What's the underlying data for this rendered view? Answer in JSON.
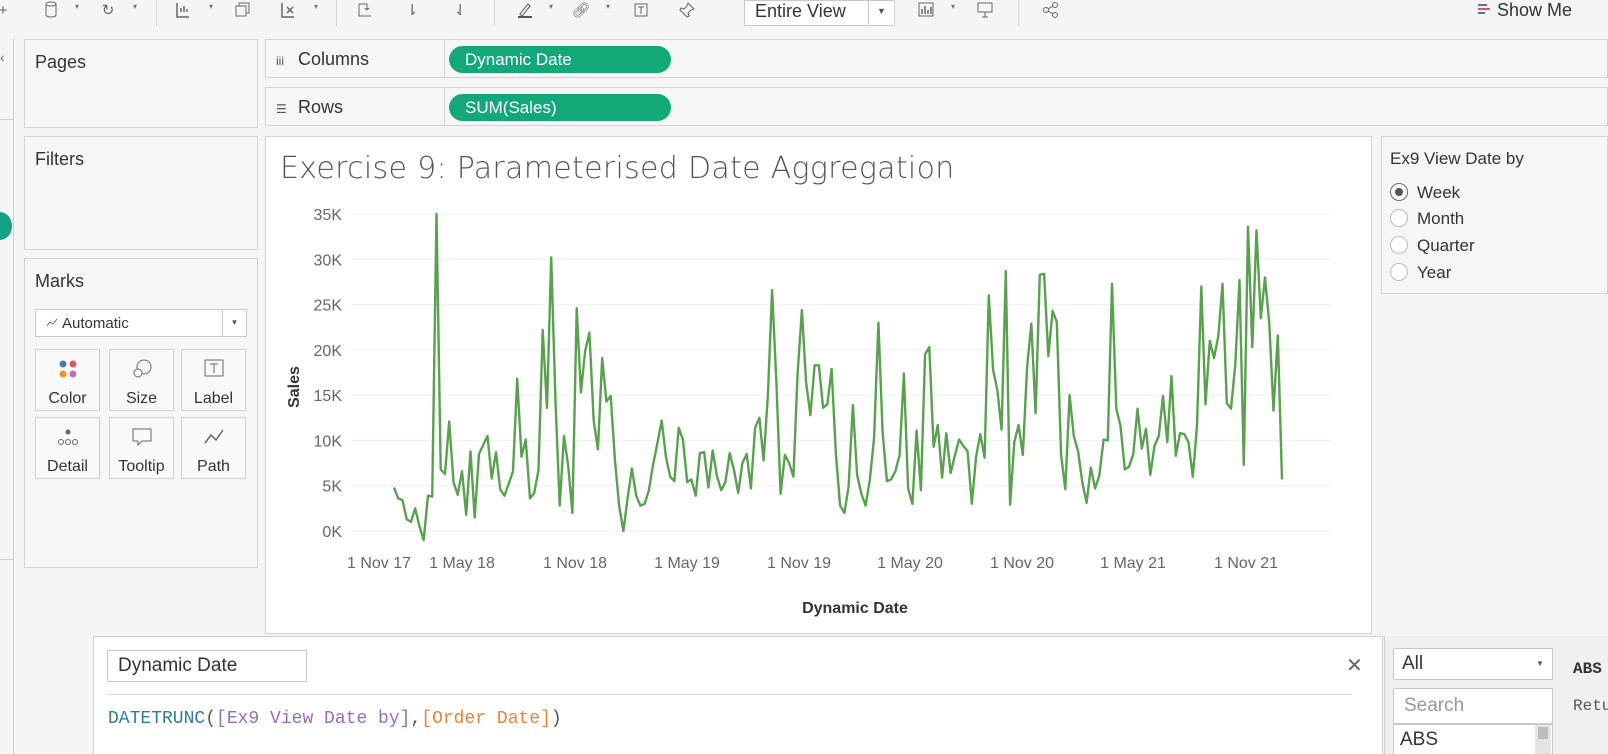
{
  "toolbar": {
    "fit_label": "Entire View",
    "show_me_label": "Show Me",
    "icons": [
      "add-datasource-icon",
      "refresh-icon",
      "new-sheet-icon",
      "duplicate-sheet-icon",
      "clear-sheet-icon",
      "swap-icon",
      "sort-asc-icon",
      "sort-desc-icon",
      "highlight-icon",
      "group-icon",
      "label-icon",
      "pin-icon",
      "bar-chart-icon",
      "presentation-icon",
      "share-icon"
    ]
  },
  "panels": {
    "pages_title": "Pages",
    "filters_title": "Filters",
    "marks_title": "Marks",
    "marks_type": "Automatic",
    "mark_cards": [
      {
        "label": "Color",
        "icon": "color-icon"
      },
      {
        "label": "Size",
        "icon": "size-icon"
      },
      {
        "label": "Label",
        "icon": "label-icon"
      },
      {
        "label": "Detail",
        "icon": "detail-icon"
      },
      {
        "label": "Tooltip",
        "icon": "tooltip-icon"
      },
      {
        "label": "Path",
        "icon": "path-icon"
      }
    ]
  },
  "shelves": {
    "columns_label": "Columns",
    "columns_pill": "Dynamic Date",
    "rows_label": "Rows",
    "rows_pill": "SUM(Sales)"
  },
  "view": {
    "title": "Exercise 9: Parameterised Date Aggregation"
  },
  "parameter": {
    "title": "Ex9  View Date by",
    "options": [
      "Week",
      "Month",
      "Quarter",
      "Year"
    ],
    "selected": "Week"
  },
  "calc_editor": {
    "name": "Dynamic Date",
    "formula_fn": "DATETRUNC",
    "formula_open": "(",
    "formula_param": "[Ex9  View Date by]",
    "formula_comma": ",",
    "formula_field": "[Order Date]",
    "formula_close": ")"
  },
  "function_list": {
    "category": "All",
    "search_placeholder": "Search",
    "first_item": "ABS",
    "desc_title": "ABS",
    "desc_text": "Retu absol"
  },
  "chart_data": {
    "type": "line",
    "title": "Exercise 9: Parameterised Date Aggregation",
    "xlabel": "Dynamic Date",
    "ylabel": "Sales",
    "x_tick_labels": [
      "1 Nov 17",
      "1 May 18",
      "1 Nov 18",
      "1 May 19",
      "1 Nov 19",
      "1 May 20",
      "1 Nov 20",
      "1 May 21",
      "1 Nov 21"
    ],
    "y_tick_labels": [
      "0K",
      "5K",
      "10K",
      "15K",
      "20K",
      "25K",
      "30K",
      "35K"
    ],
    "ylim": [
      -1000,
      35000
    ],
    "color": "#59a14f",
    "series": [
      {
        "values": [
          4800,
          3600,
          3400,
          1300,
          1000,
          2500,
          500,
          -1000,
          3900,
          3800,
          35000,
          6800,
          6300,
          12100,
          5400,
          4000,
          6600,
          1800,
          8800,
          1500,
          8500,
          9500,
          10500,
          5800,
          8700,
          4600,
          3900,
          5200,
          6600,
          16800,
          8200,
          10100,
          3600,
          4200,
          6700,
          22200,
          13600,
          30200,
          14300,
          2800,
          10500,
          7200,
          2000,
          24600,
          15300,
          19900,
          21900,
          12200,
          9000,
          19100,
          14300,
          14900,
          7900,
          2700,
          0,
          3700,
          6900,
          3900,
          2800,
          3000,
          4500,
          7400,
          9700,
          12200,
          8200,
          6000,
          5500,
          11400,
          10100,
          5400,
          5700,
          3900,
          8600,
          8700,
          4800,
          8900,
          6100,
          4500,
          5400,
          8600,
          6800,
          4200,
          7500,
          8500,
          4700,
          11400,
          12500,
          7800,
          15000,
          26600,
          16400,
          4100,
          8400,
          7500,
          6000,
          17400,
          24400,
          16400,
          12800,
          18300,
          18300,
          13600,
          14000,
          17900,
          8500,
          2800,
          2000,
          4900,
          13900,
          6200,
          4100,
          2800,
          5700,
          10300,
          23000,
          10900,
          5500,
          5700,
          6600,
          8400,
          17400,
          4700,
          3000,
          11100,
          4500,
          19500,
          20300,
          9300,
          11700,
          5900,
          10800,
          6400,
          8300,
          10100,
          9400,
          8800,
          3000,
          8200,
          10700,
          8100,
          26000,
          17800,
          15600,
          11200,
          28700,
          2900,
          9800,
          11700,
          8400,
          18100,
          22900,
          13000,
          28300,
          28400,
          19300,
          24300,
          23100,
          8400,
          4600,
          15000,
          10500,
          8800,
          5400,
          3100,
          7000,
          4700,
          6100,
          10100,
          10000,
          27300,
          13500,
          11600,
          6800,
          7100,
          8500,
          13500,
          9100,
          11300,
          6200,
          9400,
          10500,
          14900,
          9800,
          17100,
          8300,
          10800,
          10700,
          9800,
          6000,
          11600,
          27000,
          14000,
          21000,
          19100,
          21500,
          27300,
          14100,
          13500,
          18400,
          27700,
          7300,
          33600,
          20300,
          33200,
          23500,
          28000,
          22900,
          13300,
          21600,
          5700
        ]
      }
    ]
  }
}
